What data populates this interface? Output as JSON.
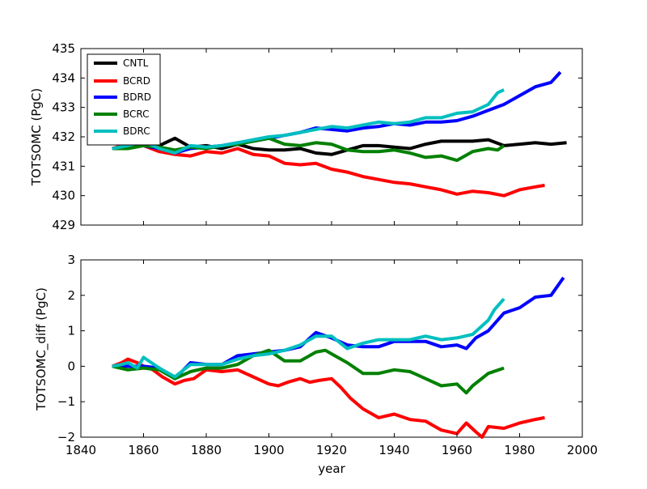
{
  "chart_data": [
    {
      "type": "line",
      "ylabel": "TOTSOMC (PgC)",
      "xlim": [
        1840,
        2000
      ],
      "ylim": [
        429,
        435
      ],
      "xticks": [
        1840,
        1860,
        1880,
        1900,
        1920,
        1940,
        1960,
        1980,
        2000
      ],
      "yticks": [
        429,
        430,
        431,
        432,
        433,
        434,
        435
      ],
      "ytick_labels": [
        "429",
        "430",
        "431",
        "432",
        "433",
        "434",
        "435"
      ],
      "legend": "top-left",
      "series": [
        {
          "name": "CNTL",
          "color": "#000000",
          "x": [
            1850,
            1855,
            1860,
            1865,
            1868,
            1870,
            1875,
            1880,
            1885,
            1890,
            1895,
            1900,
            1905,
            1910,
            1915,
            1920,
            1925,
            1930,
            1935,
            1940,
            1945,
            1950,
            1955,
            1960,
            1965,
            1970,
            1975,
            1980,
            1985,
            1990,
            1995
          ],
          "y": [
            431.6,
            431.7,
            431.75,
            431.7,
            431.85,
            431.95,
            431.65,
            431.7,
            431.6,
            431.75,
            431.6,
            431.55,
            431.55,
            431.6,
            431.45,
            431.4,
            431.55,
            431.7,
            431.7,
            431.65,
            431.6,
            431.75,
            431.85,
            431.85,
            431.85,
            431.9,
            431.7,
            431.75,
            431.8,
            431.75,
            431.8
          ]
        },
        {
          "name": "BCRD",
          "color": "#ff0000",
          "x": [
            1850,
            1853,
            1856,
            1860,
            1865,
            1870,
            1875,
            1880,
            1885,
            1890,
            1895,
            1900,
            1905,
            1910,
            1915,
            1920,
            1925,
            1930,
            1935,
            1940,
            1945,
            1950,
            1955,
            1960,
            1965,
            1970,
            1975,
            1980,
            1985,
            1988
          ],
          "y": [
            431.6,
            431.7,
            431.85,
            431.7,
            431.5,
            431.4,
            431.35,
            431.5,
            431.45,
            431.6,
            431.4,
            431.35,
            431.1,
            431.05,
            431.1,
            430.9,
            430.8,
            430.65,
            430.55,
            430.45,
            430.4,
            430.3,
            430.2,
            430.05,
            430.15,
            430.1,
            430.0,
            430.2,
            430.3,
            430.35
          ]
        },
        {
          "name": "BDRD",
          "color": "#0000ff",
          "x": [
            1850,
            1855,
            1860,
            1865,
            1870,
            1875,
            1880,
            1885,
            1890,
            1895,
            1900,
            1905,
            1910,
            1915,
            1920,
            1925,
            1930,
            1935,
            1940,
            1945,
            1950,
            1955,
            1960,
            1965,
            1970,
            1975,
            1980,
            1985,
            1990,
            1993
          ],
          "y": [
            431.6,
            431.65,
            431.7,
            431.6,
            431.45,
            431.6,
            431.65,
            431.7,
            431.8,
            431.85,
            431.95,
            432.05,
            432.15,
            432.3,
            432.25,
            432.2,
            432.3,
            432.35,
            432.45,
            432.4,
            432.5,
            432.5,
            432.55,
            432.7,
            432.9,
            433.1,
            433.4,
            433.7,
            433.85,
            434.2
          ]
        },
        {
          "name": "BCRC",
          "color": "#008000",
          "x": [
            1850,
            1855,
            1860,
            1865,
            1870,
            1875,
            1880,
            1885,
            1890,
            1895,
            1900,
            1905,
            1910,
            1915,
            1920,
            1925,
            1930,
            1935,
            1940,
            1945,
            1950,
            1955,
            1960,
            1965,
            1970,
            1973,
            1975
          ],
          "y": [
            431.6,
            431.6,
            431.7,
            431.65,
            431.55,
            431.65,
            431.6,
            431.7,
            431.75,
            431.85,
            431.95,
            431.75,
            431.7,
            431.8,
            431.75,
            431.55,
            431.5,
            431.5,
            431.55,
            431.45,
            431.3,
            431.35,
            431.2,
            431.5,
            431.6,
            431.55,
            431.7
          ]
        },
        {
          "name": "BDRC",
          "color": "#00bfbf",
          "x": [
            1850,
            1855,
            1860,
            1865,
            1870,
            1875,
            1880,
            1885,
            1890,
            1895,
            1900,
            1905,
            1910,
            1915,
            1920,
            1925,
            1930,
            1935,
            1940,
            1945,
            1950,
            1955,
            1960,
            1965,
            1970,
            1973,
            1975
          ],
          "y": [
            431.6,
            431.7,
            431.85,
            431.6,
            431.45,
            431.7,
            431.65,
            431.7,
            431.8,
            431.9,
            432.0,
            432.05,
            432.15,
            432.25,
            432.35,
            432.3,
            432.4,
            432.5,
            432.45,
            432.5,
            432.65,
            432.65,
            432.8,
            432.85,
            433.1,
            433.5,
            433.6
          ]
        }
      ]
    },
    {
      "type": "line",
      "xlabel": "year",
      "ylabel": "TOTSOMC_diff (PgC)",
      "xlim": [
        1840,
        2000
      ],
      "ylim": [
        -2,
        3
      ],
      "xticks": [
        1840,
        1860,
        1880,
        1900,
        1920,
        1940,
        1960,
        1980,
        2000
      ],
      "yticks": [
        -2,
        -1,
        0,
        1,
        2,
        3
      ],
      "ytick_labels": [
        "−2",
        "−1",
        "0",
        "1",
        "2",
        "3"
      ],
      "series": [
        {
          "name": "BCRD",
          "color": "#ff0000",
          "x": [
            1850,
            1853,
            1855,
            1858,
            1860,
            1863,
            1866,
            1870,
            1873,
            1876,
            1880,
            1885,
            1890,
            1895,
            1900,
            1903,
            1906,
            1910,
            1913,
            1916,
            1920,
            1923,
            1926,
            1930,
            1935,
            1940,
            1945,
            1950,
            1955,
            1960,
            1963,
            1966,
            1968,
            1970,
            1975,
            1980,
            1985,
            1988
          ],
          "y": [
            0,
            0.1,
            0.2,
            0.1,
            0,
            -0.1,
            -0.3,
            -0.5,
            -0.4,
            -0.35,
            -0.1,
            -0.15,
            -0.1,
            -0.3,
            -0.5,
            -0.55,
            -0.45,
            -0.35,
            -0.45,
            -0.4,
            -0.35,
            -0.6,
            -0.9,
            -1.2,
            -1.45,
            -1.35,
            -1.5,
            -1.55,
            -1.8,
            -1.9,
            -1.6,
            -1.85,
            -2.0,
            -1.7,
            -1.75,
            -1.6,
            -1.5,
            -1.45
          ]
        },
        {
          "name": "BDRD",
          "color": "#0000ff",
          "x": [
            1850,
            1855,
            1860,
            1865,
            1870,
            1875,
            1880,
            1885,
            1890,
            1895,
            1900,
            1905,
            1910,
            1915,
            1920,
            1925,
            1930,
            1935,
            1940,
            1945,
            1950,
            1955,
            1960,
            1963,
            1966,
            1970,
            1975,
            1980,
            1985,
            1990,
            1994
          ],
          "y": [
            0,
            0,
            0,
            -0.05,
            -0.35,
            0.1,
            0.05,
            0.05,
            0.3,
            0.35,
            0.4,
            0.45,
            0.55,
            0.95,
            0.8,
            0.6,
            0.55,
            0.55,
            0.7,
            0.7,
            0.7,
            0.55,
            0.6,
            0.5,
            0.8,
            1.0,
            1.5,
            1.65,
            1.95,
            2.0,
            2.5
          ]
        },
        {
          "name": "BCRC",
          "color": "#008000",
          "x": [
            1850,
            1855,
            1860,
            1865,
            1870,
            1875,
            1880,
            1885,
            1890,
            1895,
            1900,
            1905,
            1910,
            1915,
            1918,
            1920,
            1925,
            1930,
            1935,
            1940,
            1945,
            1950,
            1955,
            1960,
            1963,
            1965,
            1970,
            1975
          ],
          "y": [
            0,
            -0.1,
            -0.05,
            -0.1,
            -0.35,
            -0.15,
            -0.05,
            -0.05,
            0.05,
            0.3,
            0.45,
            0.15,
            0.15,
            0.4,
            0.45,
            0.35,
            0.1,
            -0.2,
            -0.2,
            -0.1,
            -0.15,
            -0.35,
            -0.55,
            -0.5,
            -0.75,
            -0.55,
            -0.2,
            -0.05
          ]
        },
        {
          "name": "BDRC",
          "color": "#00bfbf",
          "x": [
            1850,
            1853,
            1855,
            1858,
            1860,
            1865,
            1870,
            1875,
            1880,
            1885,
            1890,
            1895,
            1900,
            1905,
            1910,
            1915,
            1920,
            1925,
            1930,
            1935,
            1940,
            1945,
            1950,
            1955,
            1960,
            1965,
            1970,
            1972,
            1975
          ],
          "y": [
            0,
            0.05,
            0.1,
            -0.05,
            0.25,
            -0.05,
            -0.3,
            0.05,
            0.05,
            0.05,
            0.2,
            0.3,
            0.35,
            0.45,
            0.6,
            0.85,
            0.85,
            0.5,
            0.65,
            0.75,
            0.75,
            0.75,
            0.85,
            0.75,
            0.8,
            0.9,
            1.3,
            1.6,
            1.9
          ]
        }
      ]
    }
  ]
}
